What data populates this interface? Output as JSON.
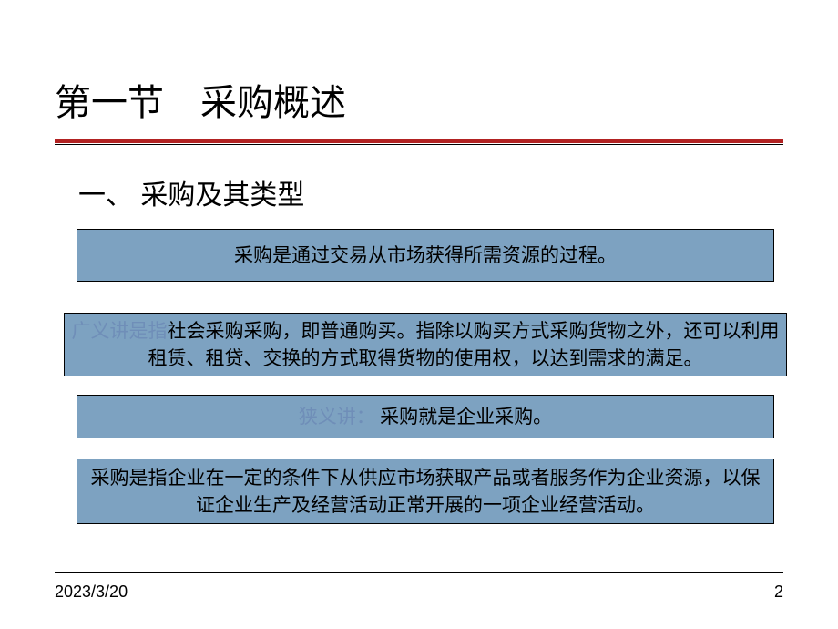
{
  "title": "第一节 采购概述",
  "subheading": "一、 采购及其类型",
  "box1": "采购是通过交易从市场获得所需资源的过程。",
  "box2_hl": "广义讲是指",
  "box2_rest": "社会采购采购，即普通购买。指除以购买方式采购货物之外，还可以利用租赁、租贷、交换的方式取得货物的使用权，以达到需求的满足。",
  "box3_hl": "狭义讲：",
  "box3_rest": "  采购就是企业采购。",
  "box4": "采购是指企业在一定的条件下从供应市场获取产品或者服务作为企业资源，以保证企业生产及经营活动正常开展的一项企业经营活动。",
  "footer_date": "2023/3/20",
  "footer_page": "2",
  "colors": {
    "box_fill": "#7da2c1",
    "rule_red": "#b22222",
    "highlight_text": "#6f8eb8",
    "background": "#ffffff",
    "text": "#000000"
  },
  "box_fill": "#7da2c1"
}
